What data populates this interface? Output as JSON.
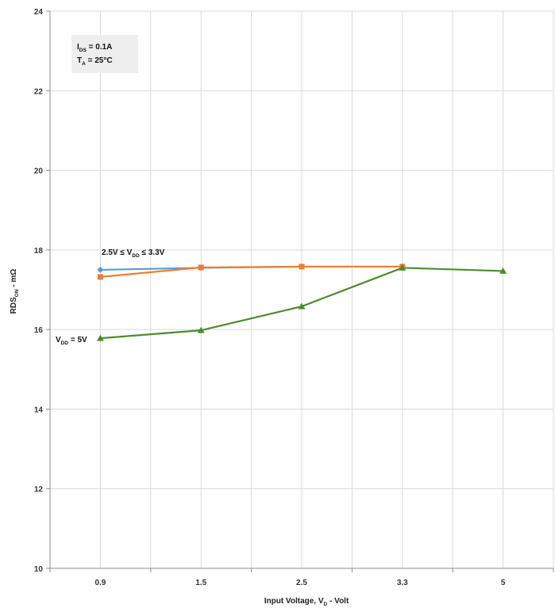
{
  "chart_data": {
    "type": "line",
    "categories": [
      "0.9",
      "1.5",
      "2.5",
      "3.3",
      "5"
    ],
    "xlabel": {
      "main": "Input Voltage, V",
      "sub": "D",
      "tail": " - Volt"
    },
    "ylabel": {
      "main": "RDS",
      "sub": "ON",
      "tail": " - mΩ"
    },
    "ylim": [
      10,
      24
    ],
    "yticks": [
      "10",
      "12",
      "14",
      "16",
      "18",
      "20",
      "22",
      "24"
    ],
    "grid": true,
    "series": [
      {
        "color": "#5B9BD5",
        "marker": "diamond",
        "values": [
          17.5,
          17.55,
          17.58,
          17.58,
          null
        ]
      },
      {
        "color": "#ED7D31",
        "marker": "square",
        "values": [
          17.32,
          17.56,
          17.58,
          17.58,
          null
        ]
      },
      {
        "color": "#4E8B2E",
        "marker": "triangle",
        "values": [
          15.78,
          15.98,
          16.58,
          17.55,
          17.47
        ]
      }
    ],
    "annotations": {
      "conditions": {
        "line1": {
          "main": "I",
          "sub": "DS",
          "tail": " = 0.1A"
        },
        "line2": {
          "main": "T",
          "sub": "A",
          "tail": " = 25°C"
        }
      },
      "range_label": {
        "main": "2.5V ≤ V",
        "sub": "DD",
        "tail": " ≤ 3.3V"
      },
      "vdd5_label": {
        "main": "V",
        "sub": "DD",
        "tail": " = 5V"
      }
    }
  }
}
